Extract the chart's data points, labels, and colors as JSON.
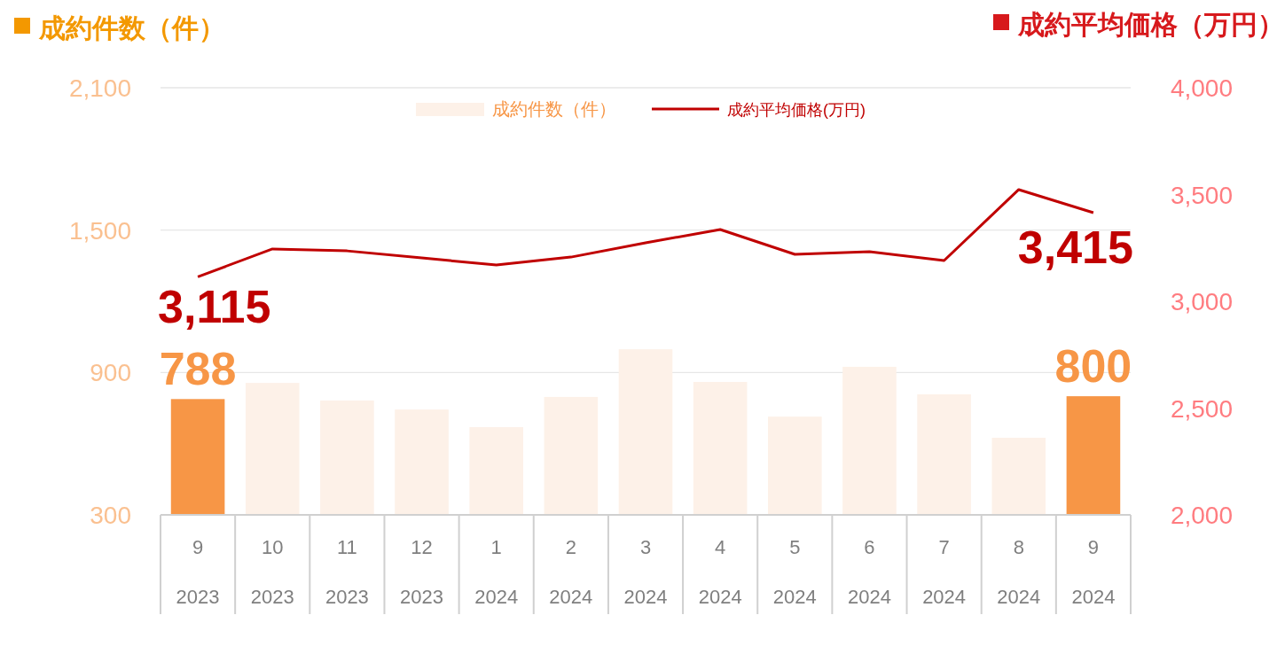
{
  "chart_data": {
    "type": "bar",
    "ylabel": "成約件数（件）",
    "y2label": "成約平均価格（万円）",
    "categories": [
      "9\n2023",
      "10\n2023",
      "11\n2023",
      "12\n2023",
      "1\n2024",
      "2\n2024",
      "3\n2024",
      "4\n2024",
      "5\n2024",
      "6\n2024",
      "7\n2024",
      "8\n2024",
      "9\n2024"
    ],
    "series": [
      {
        "name": "成約件数（件）",
        "color": "#fdf1e8",
        "colors": [
          "#f79646",
          "#fdf1e8",
          "#fdf1e8",
          "#fdf1e8",
          "#fdf1e8",
          "#fdf1e8",
          "#fdf1e8",
          "#fdf1e8",
          "#fdf1e8",
          "#fdf1e8",
          "#fdf1e8",
          "#fdf1e8",
          "#f79646"
        ],
        "values": [
          788,
          856,
          782,
          744,
          670,
          797,
          998,
          860,
          714,
          924,
          808,
          625,
          800
        ],
        "value_labels": [
          "788",
          null,
          null,
          null,
          null,
          null,
          null,
          null,
          null,
          null,
          null,
          null,
          "800"
        ]
      },
      {
        "name": "成約平均価格(万円)",
        "type": "line",
        "axis": "y2",
        "color": "#c00000",
        "values": [
          3115,
          3245,
          3236,
          3203,
          3170,
          3207,
          3274,
          3336,
          3220,
          3232,
          3191,
          3523,
          3415
        ],
        "value_labels": [
          "3,115",
          null,
          null,
          null,
          null,
          null,
          null,
          null,
          null,
          null,
          null,
          null,
          "3,415"
        ]
      }
    ],
    "ylim": [
      300,
      2100
    ],
    "yticks": [
      {
        "value": 300,
        "label": "300"
      },
      {
        "value": 900,
        "label": "900"
      },
      {
        "value": 1500,
        "label": "1,500"
      },
      {
        "value": 2100,
        "label": "2,100"
      }
    ],
    "y2lim": [
      2000,
      4000
    ],
    "y2ticks": [
      {
        "value": 2000,
        "label": "2,000"
      },
      {
        "value": 2500,
        "label": "2,500"
      },
      {
        "value": 3000,
        "label": "3,000"
      },
      {
        "value": 3500,
        "label": "3,500"
      },
      {
        "value": 4000,
        "label": "4,000"
      }
    ],
    "grid": "y",
    "legend": "top",
    "line_style": "solid",
    "marker": "none"
  }
}
